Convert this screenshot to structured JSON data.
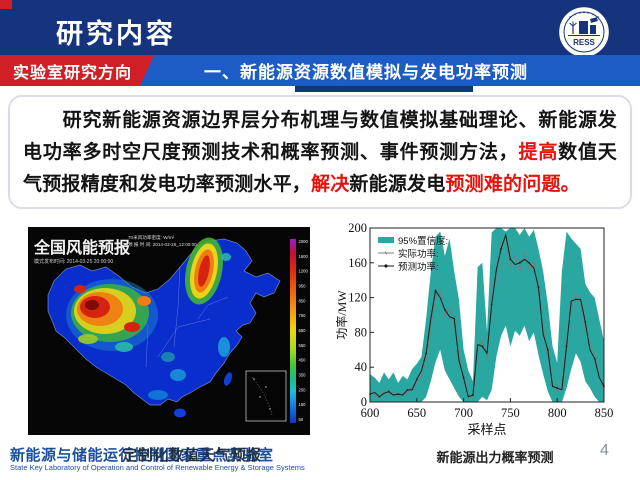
{
  "header": {
    "title": "研究内容",
    "logo_abbr": "RESS"
  },
  "banner": {
    "left_label": "实验室研究方向",
    "right_label": "一、新能源资源数值模拟与发电功率预测"
  },
  "intro": {
    "segments": [
      {
        "text": "　　研究新能源资源边界层分布机理与数值模拟基础理论、新能源发电功率多时空尺度预测技术和概率预测、事件预测方法，",
        "style": "normal"
      },
      {
        "text": "提高",
        "style": "red"
      },
      {
        "text": "数值天气预报精度和发电功率预测水平，",
        "style": "normal"
      },
      {
        "text": "解决",
        "style": "red"
      },
      {
        "text": "新能源发电",
        "style": "normal"
      },
      {
        "text": "预测难的问题。",
        "style": "red"
      }
    ]
  },
  "map_figure": {
    "title": "全国风能预报",
    "info_line1": "70米风功率密度: W/m²",
    "info_line2": "预 报 时 间: 2014-03-26_12:00:00",
    "info_line3": "模式发布时间:  2014-03-25 20:00:00",
    "colorbar_labels": [
      "2000",
      "1600",
      "1200",
      "950",
      "850",
      "750",
      "650",
      "550",
      "450",
      "350",
      "250",
      "150",
      "50"
    ],
    "caption": "定制化数值天气预报"
  },
  "chart_data": {
    "type": "area",
    "title": "",
    "xlabel": "采样点",
    "ylabel": "功率/MW",
    "xlim": [
      600,
      850
    ],
    "ylim": [
      0,
      200
    ],
    "xticks": [
      600,
      650,
      700,
      750,
      800,
      850
    ],
    "yticks": [
      0,
      40,
      80,
      120,
      160,
      200
    ],
    "legend_position": "top-left",
    "grid": false,
    "caption": "新能源出力概率预测",
    "x": [
      600,
      605,
      610,
      615,
      620,
      625,
      630,
      635,
      640,
      645,
      650,
      655,
      660,
      665,
      670,
      675,
      680,
      685,
      690,
      695,
      700,
      705,
      710,
      715,
      720,
      725,
      730,
      735,
      740,
      745,
      750,
      755,
      760,
      765,
      770,
      775,
      780,
      785,
      790,
      795,
      800,
      805,
      810,
      815,
      820,
      825,
      830,
      835,
      840,
      845,
      850
    ],
    "series": [
      {
        "name": "95%置信度:",
        "type": "band",
        "color": "#2aa7a0",
        "upper": [
          32,
          28,
          22,
          34,
          26,
          34,
          22,
          30,
          26,
          38,
          44,
          52,
          96,
          150,
          190,
          196,
          168,
          188,
          150,
          118,
          60,
          36,
          24,
          155,
          160,
          80,
          195,
          200,
          200,
          196,
          200,
          200,
          192,
          200,
          190,
          198,
          176,
          150,
          112,
          64,
          45,
          150,
          196,
          188,
          182,
          176,
          136,
          126,
          120,
          95,
          70
        ],
        "lower": [
          0,
          0,
          0,
          0,
          0,
          0,
          0,
          0,
          0,
          0,
          0,
          0,
          6,
          24,
          46,
          60,
          36,
          26,
          16,
          6,
          0,
          0,
          0,
          0,
          6,
          2,
          14,
          52,
          76,
          88,
          64,
          82,
          76,
          88,
          70,
          80,
          54,
          32,
          12,
          0,
          0,
          0,
          16,
          38,
          56,
          46,
          24,
          16,
          6,
          0,
          0
        ]
      },
      {
        "name": "实际功率:",
        "type": "line",
        "color": "#7d7d7d",
        "values": [
          12,
          8,
          4,
          14,
          9,
          12,
          6,
          11,
          10,
          17,
          22,
          30,
          48,
          86,
          118,
          128,
          98,
          108,
          88,
          56,
          22,
          8,
          5,
          60,
          70,
          50,
          120,
          140,
          182,
          188,
          156,
          168,
          150,
          172,
          152,
          162,
          122,
          86,
          52,
          24,
          12,
          20,
          72,
          108,
          124,
          112,
          84,
          66,
          55,
          30,
          12
        ]
      },
      {
        "name": "预测功率:",
        "type": "line-marker",
        "color": "#1a1a1a",
        "values": [
          9,
          11,
          6,
          10,
          12,
          8,
          9,
          8,
          14,
          14,
          26,
          36,
          56,
          96,
          128,
          120,
          106,
          98,
          96,
          48,
          28,
          6,
          8,
          66,
          64,
          56,
          112,
          152,
          176,
          192,
          164,
          158,
          160,
          164,
          160,
          154,
          132,
          78,
          60,
          18,
          16,
          14,
          64,
          116,
          118,
          118,
          92,
          60,
          50,
          28,
          18
        ]
      }
    ]
  },
  "footer": {
    "lab_name_cn": "新能源与储能运行控制国家重点实验室",
    "lab_name_en": "State Key Laboratory of Operation and Control of Renewable Energy & Storage Systems",
    "page_number": "4"
  },
  "colors": {
    "header_bg": "#16337d",
    "banner_red": "#d01f27",
    "banner_blue": "#1e5cc5",
    "confidence_teal": "#2aa7a0",
    "highlight_red": "#e8120c",
    "footer_blue": "#1d4fa0"
  }
}
